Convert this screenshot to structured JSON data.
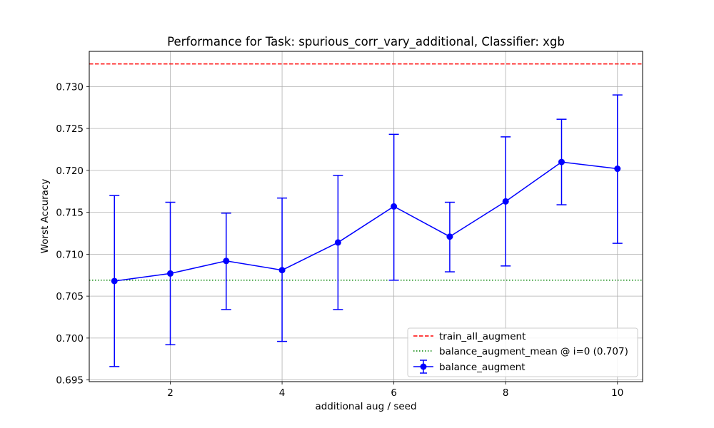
{
  "chart_data": {
    "type": "line",
    "title": "Performance for Task: spurious_corr_vary_additional, Classifier: xgb",
    "xlabel": "additional aug / seed",
    "ylabel": "Worst Accuracy",
    "xlim": [
      0.55,
      10.45
    ],
    "ylim": [
      0.6948,
      0.7342
    ],
    "x_ticks": [
      2,
      4,
      6,
      8,
      10
    ],
    "x_tick_labels": [
      "2",
      "4",
      "6",
      "8",
      "10"
    ],
    "y_ticks": [
      0.695,
      0.7,
      0.705,
      0.71,
      0.715,
      0.72,
      0.725,
      0.73
    ],
    "y_tick_labels": [
      "0.695",
      "0.700",
      "0.705",
      "0.710",
      "0.715",
      "0.720",
      "0.725",
      "0.730"
    ],
    "grid": true,
    "legend_position": "lower-right",
    "series": [
      {
        "name": "balance_augment",
        "color": "#0000ff",
        "style": "solid-line-circle-markers-errorbars",
        "x": [
          1,
          2,
          3,
          4,
          5,
          6,
          7,
          8,
          9,
          10
        ],
        "y": [
          0.7068,
          0.7077,
          0.7092,
          0.7081,
          0.7114,
          0.7157,
          0.7121,
          0.7163,
          0.721,
          0.7202
        ],
        "error_low": [
          0.6966,
          0.6992,
          0.7034,
          0.6996,
          0.7034,
          0.7069,
          0.7079,
          0.7086,
          0.7159,
          0.7113
        ],
        "error_high": [
          0.717,
          0.7162,
          0.7149,
          0.7167,
          0.7194,
          0.7243,
          0.7162,
          0.724,
          0.7261,
          0.729
        ]
      }
    ],
    "reference_lines": [
      {
        "name": "train_all_augment",
        "y": 0.7327,
        "color": "#ff0000",
        "style": "dashed"
      },
      {
        "name": "balance_augment_mean @ i=0 (0.707)",
        "y": 0.7069,
        "color": "#008000",
        "style": "dotted"
      }
    ]
  }
}
